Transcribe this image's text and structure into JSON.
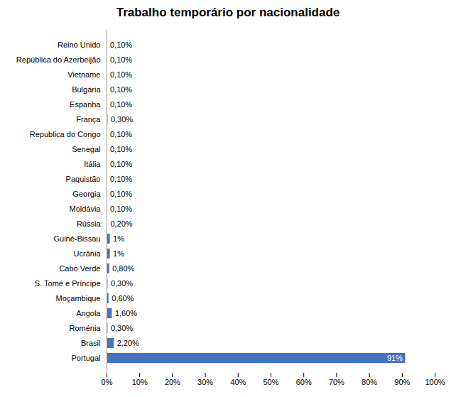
{
  "chart_data": {
    "type": "bar",
    "orientation": "horizontal",
    "title": "Trabalho temporário por nacionalidade",
    "categories": [
      "Portugal",
      "Brasil",
      "Roménia",
      "Angola",
      "Moçambique",
      "S. Tomé e Príncipe",
      "Cabo Verde",
      "Ucrânia",
      "Guiné-Bissau",
      "Rússia",
      "Moldávia",
      "Georgia",
      "Paquistão",
      "Itália",
      "Senegal",
      "Republica do Congo",
      "França",
      "Espanha",
      "Bulgária",
      "Vietname",
      "República do Azerbeijão",
      "Reino Unido"
    ],
    "values": [
      91,
      2.2,
      0.3,
      1.6,
      0.6,
      0.3,
      0.8,
      1.0,
      1.0,
      0.2,
      0.1,
      0.1,
      0.1,
      0.1,
      0.1,
      0.1,
      0.3,
      0.1,
      0.1,
      0.1,
      0.1,
      0.1
    ],
    "value_labels": [
      "91%",
      "2,20%",
      "0,30%",
      "1,60%",
      "0,60%",
      "0,30%",
      "0,80%",
      "1%",
      "1%",
      "0,20%",
      "0,10%",
      "0,10%",
      "0,10%",
      "0,10%",
      "0,10%",
      "0,10%",
      "0,30%",
      "0,10%",
      "0,10%",
      "0,10%",
      "0,10%",
      "0,10%"
    ],
    "color": "#4472C4",
    "xlim": [
      0,
      100
    ],
    "xticks": [
      {
        "value": 0,
        "label": "0%"
      },
      {
        "value": 10,
        "label": "10%"
      },
      {
        "value": 20,
        "label": "20%"
      },
      {
        "value": 30,
        "label": "30%"
      },
      {
        "value": 40,
        "label": "40%"
      },
      {
        "value": 50,
        "label": "50%"
      },
      {
        "value": 60,
        "label": "60%"
      },
      {
        "value": 70,
        "label": "70%"
      },
      {
        "value": 80,
        "label": "80%"
      },
      {
        "value": 90,
        "label": "90%"
      },
      {
        "value": 100,
        "label": "100%"
      }
    ],
    "data_labels": true,
    "grid": false
  }
}
